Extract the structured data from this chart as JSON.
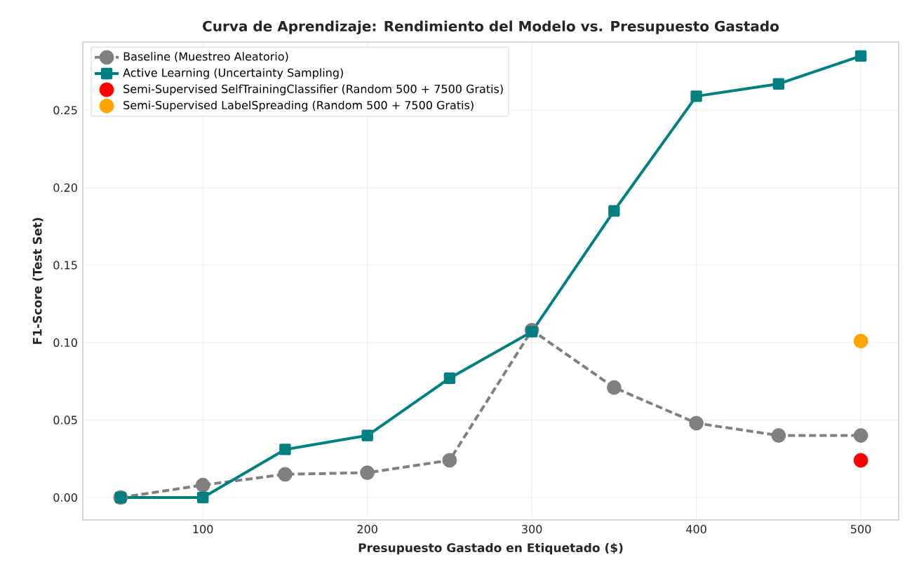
{
  "chart_data": {
    "type": "line",
    "title": "Curva de Aprendizaje: Rendimiento del Modelo vs. Presupuesto Gastado",
    "xlabel": "Presupuesto Gastado en Etiquetado ($)",
    "ylabel": "F1-Score (Test Set)",
    "x": [
      50,
      100,
      150,
      200,
      250,
      300,
      350,
      400,
      450,
      500
    ],
    "series": [
      {
        "name": "Baseline (Muestreo Aleatorio)",
        "color": "#808080",
        "marker": "circle",
        "line_style": "dashed",
        "values": [
          0.0,
          0.008,
          0.015,
          0.016,
          0.024,
          0.108,
          0.071,
          0.048,
          0.04,
          0.04
        ]
      },
      {
        "name": "Active Learning (Uncertainty Sampling)",
        "color": "#008080",
        "marker": "square",
        "line_style": "solid",
        "values": [
          0.0,
          0.0,
          0.031,
          0.04,
          0.077,
          0.107,
          0.185,
          0.259,
          0.267,
          0.285
        ]
      },
      {
        "name": "Semi-Supervised SelfTrainingClassifier (Random 500 + 7500 Gratis)",
        "type": "scatter",
        "color": "#ff0000",
        "marker": "circle",
        "x": [
          500
        ],
        "values": [
          0.024
        ]
      },
      {
        "name": "Semi-Supervised LabelSpreading (Random 500 + 7500 Gratis)",
        "type": "scatter",
        "color": "#ffa500",
        "marker": "circle",
        "x": [
          500
        ],
        "values": [
          0.101
        ]
      }
    ],
    "xlim": [
      27,
      523
    ],
    "ylim": [
      -0.0145,
      0.294
    ],
    "xticks": [
      100,
      200,
      300,
      400,
      500
    ],
    "yticks": [
      {
        "value": 0,
        "label": "0.00"
      },
      {
        "value": 0.05,
        "label": "0.05"
      },
      {
        "value": 0.1,
        "label": "0.10"
      },
      {
        "value": 0.15,
        "label": "0.15"
      },
      {
        "value": 0.2,
        "label": "0.20"
      },
      {
        "value": 0.25,
        "label": "0.25"
      }
    ],
    "grid": true,
    "legend": "top left"
  }
}
